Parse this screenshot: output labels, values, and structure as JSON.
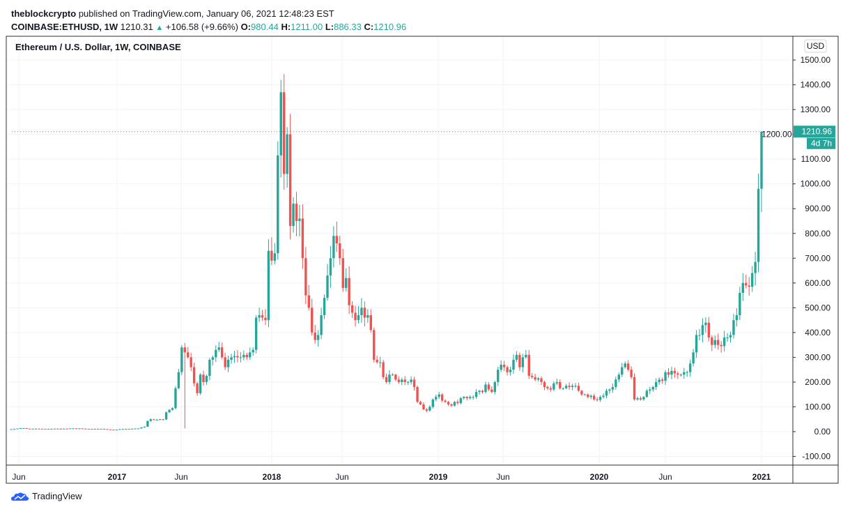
{
  "header": {
    "publisher": "theblockcrypto",
    "published_text": "published on TradingView.com, January 06, 2021 12:48:23 EST",
    "symbol": "COINBASE:ETHUSD, 1W",
    "last": "1210.31",
    "change": "+106.58 (+9.66%)",
    "o_label": "O:",
    "o": "980.44",
    "h_label": "H:",
    "h": "1211.00",
    "l_label": "L:",
    "l": "886.33",
    "c_label": "C:",
    "c": "1210.96"
  },
  "chart_data": {
    "type": "candlestick",
    "title": "Ethereum / U.S. Dollar, 1W, COINBASE",
    "currency": "USD",
    "interval": "1W",
    "ylim": [
      -100,
      1500
    ],
    "yticks": [
      "1500.00",
      "1400.00",
      "1300.00",
      "1200.00",
      "1100.00",
      "1000.00",
      "900.00",
      "800.00",
      "700.00",
      "600.00",
      "500.00",
      "400.00",
      "300.00",
      "200.00",
      "100.00",
      "0.00",
      "-100.00"
    ],
    "xticks": [
      "Jun",
      "2017",
      "Jun",
      "2018",
      "Jun",
      "2019",
      "Jun",
      "2020",
      "Jun",
      "2021"
    ],
    "grid": true,
    "colors": {
      "up": "#26a69a",
      "down": "#ef5350"
    },
    "weekly_closes": [
      10,
      11,
      12.5,
      14,
      14,
      12,
      11.5,
      11,
      12,
      11.5,
      11,
      11,
      11,
      11.5,
      12,
      11,
      11.5,
      12,
      11.8,
      13,
      13,
      12.5,
      12.8,
      12,
      11,
      11,
      10.8,
      11,
      10.5,
      11,
      10,
      9,
      8,
      7.5,
      8,
      10,
      10.5,
      10.7,
      11,
      11.5,
      12.5,
      13,
      17,
      20,
      43,
      50,
      48,
      48,
      50,
      49,
      78,
      88,
      95,
      175,
      240,
      340,
      320,
      300,
      260,
      195,
      155,
      230,
      200,
      225,
      290,
      300,
      330,
      340,
      300,
      260,
      290,
      300,
      305,
      300,
      300,
      310,
      300,
      320,
      330,
      460,
      470,
      460,
      450,
      730,
      690,
      720,
      1115,
      1370,
      1040,
      1200,
      830,
      920,
      850,
      860,
      700,
      550,
      500,
      400,
      370,
      390,
      470,
      540,
      630,
      700,
      790,
      760,
      700,
      580,
      620,
      510,
      480,
      450,
      470,
      500,
      460,
      470,
      410,
      290,
      280,
      280,
      220,
      200,
      230,
      230,
      210,
      200,
      210,
      200,
      200,
      210,
      180,
      120,
      110,
      90,
      85,
      100,
      130,
      140,
      150,
      125,
      120,
      110,
      105,
      120,
      115,
      135,
      140,
      135,
      140,
      140,
      160,
      165,
      160,
      190,
      170,
      160,
      200,
      250,
      270,
      260,
      240,
      250,
      290,
      310,
      260,
      300,
      310,
      225,
      220,
      210,
      215,
      200,
      180,
      175,
      170,
      195,
      200,
      175,
      175,
      185,
      180,
      185,
      185,
      165,
      150,
      150,
      140,
      145,
      130,
      128,
      140,
      145,
      165,
      170,
      180,
      210,
      230,
      260,
      275,
      250,
      220,
      130,
      135,
      130,
      140,
      165,
      170,
      180,
      200,
      210,
      205,
      240,
      230,
      245,
      235,
      230,
      230,
      240,
      240,
      275,
      320,
      390,
      390,
      430,
      440,
      380,
      350,
      370,
      350,
      345,
      380,
      380,
      390,
      450,
      470,
      560,
      600,
      590,
      585,
      640,
      685,
      980
    ],
    "last_candle": {
      "open": 980.44,
      "high": 1211.0,
      "low": 886.33,
      "close": 1210.96
    },
    "notable_wicks": [
      {
        "week": "2017-06-19",
        "low": 13
      },
      {
        "week": "2018-01-08",
        "high": 1420
      }
    ],
    "current_price": "1210.96",
    "countdown": "4d 7h"
  },
  "footer": {
    "brand": "TradingView"
  }
}
